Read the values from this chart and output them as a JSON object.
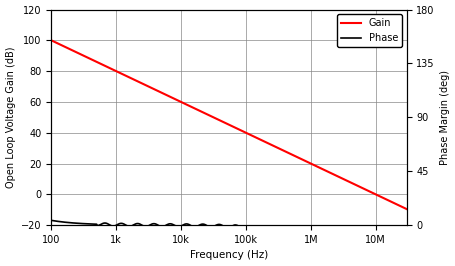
{
  "xlabel": "Frequency (Hz)",
  "ylabel_left": "Open Loop Voltage Gain (dB)",
  "ylabel_right": "Phase Margin (deg)",
  "ylim_left": [
    -20,
    120
  ],
  "ylim_right": [
    0,
    180
  ],
  "xlim": [
    100,
    30000000.0
  ],
  "gain_color": "#ff0000",
  "phase_color": "#000000",
  "gain_label": "Gain",
  "phase_label": "Phase",
  "yticks_left": [
    -20,
    0,
    20,
    40,
    60,
    80,
    100,
    120
  ],
  "yticks_right": [
    0,
    45,
    90,
    135,
    180
  ],
  "xtick_labels": [
    "100",
    "1k",
    "10k",
    "100k",
    "1M",
    "10M"
  ],
  "xtick_values": [
    100,
    1000,
    10000,
    100000,
    1000000,
    10000000
  ],
  "background_color": "#ffffff",
  "figsize": [
    4.56,
    2.66
  ],
  "dpi": 100
}
